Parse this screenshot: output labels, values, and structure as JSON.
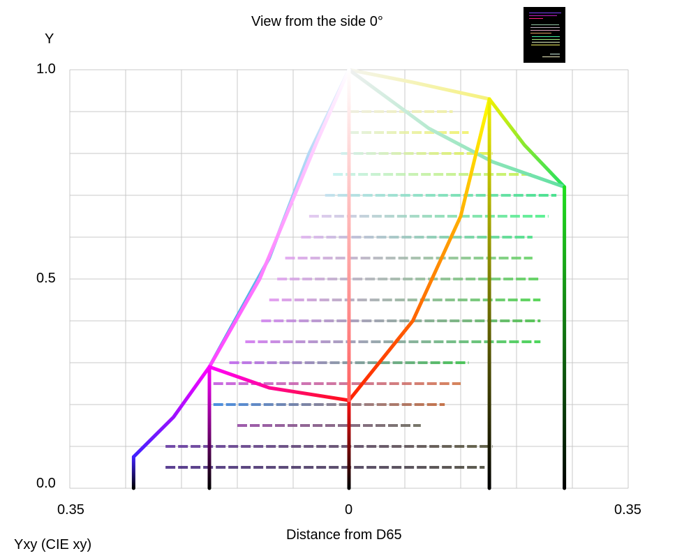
{
  "chart_data": {
    "type": "line",
    "title": "View from the side 0°",
    "xlabel": "Distance from D65",
    "ylabel": "Y",
    "caption": "Yxy (CIE xy)",
    "xlim": [
      -0.35,
      0.35
    ],
    "ylim": [
      0,
      1
    ],
    "x_tick_labels": [
      "0.35",
      "0",
      "0.35"
    ],
    "x_ticks": [
      -0.35,
      0,
      0.35
    ],
    "y_tick_labels": [
      "0.0",
      "0.5",
      "1.0"
    ],
    "y_ticks": [
      0,
      0.5,
      1
    ],
    "grid": true,
    "grid_x_step": 0.07,
    "grid_y_step": 0.1,
    "edges": [
      {
        "name": "white-yellow",
        "colors": [
          "#f4f4f0",
          "#f6f27a"
        ],
        "points": [
          [
            0,
            1
          ],
          [
            0.08,
            0.97
          ],
          [
            0.176,
            0.93
          ]
        ]
      },
      {
        "name": "yellow-green",
        "colors": [
          "#f0f000",
          "#20e060"
        ],
        "points": [
          [
            0.176,
            0.93
          ],
          [
            0.22,
            0.82
          ],
          [
            0.27,
            0.72
          ]
        ]
      },
      {
        "name": "white-green",
        "colors": [
          "#f0f0f0",
          "#60e0a0"
        ],
        "points": [
          [
            0,
            1
          ],
          [
            0.1,
            0.86
          ],
          [
            0.18,
            0.78
          ],
          [
            0.27,
            0.72
          ]
        ]
      },
      {
        "name": "white-cyan",
        "colors": [
          "#f0f0ff",
          "#20a0e0"
        ],
        "points": [
          [
            0,
            1
          ],
          [
            -0.05,
            0.8
          ],
          [
            -0.1,
            0.55
          ],
          [
            -0.175,
            0.29
          ]
        ]
      },
      {
        "name": "white-magenta",
        "colors": [
          "#ffffff",
          "#ff40ff"
        ],
        "points": [
          [
            0,
            1
          ],
          [
            -0.039,
            0.833
          ],
          [
            -0.112,
            0.5
          ],
          [
            -0.175,
            0.29
          ]
        ]
      },
      {
        "name": "magenta-blue",
        "colors": [
          "#ff00ff",
          "#4020ff"
        ],
        "points": [
          [
            -0.175,
            0.29
          ],
          [
            -0.22,
            0.17
          ],
          [
            -0.27,
            0.075
          ]
        ]
      },
      {
        "name": "magenta-red",
        "colors": [
          "#ff00ff",
          "#ff1010"
        ],
        "points": [
          [
            -0.175,
            0.29
          ],
          [
            -0.1,
            0.24
          ],
          [
            0,
            0.21
          ]
        ]
      },
      {
        "name": "red-yellow",
        "colors": [
          "#ff2000",
          "#ffff00"
        ],
        "points": [
          [
            0,
            0.21
          ],
          [
            0.08,
            0.4
          ],
          [
            0.14,
            0.65
          ],
          [
            0.176,
            0.93
          ]
        ]
      },
      {
        "name": "blue-vertical",
        "colors": [
          "#000000",
          "#4020ff"
        ],
        "points": [
          [
            -0.27,
            0
          ],
          [
            -0.27,
            0.075
          ]
        ]
      },
      {
        "name": "magenta-vertical",
        "colors": [
          "#000000",
          "#ff00ff"
        ],
        "points": [
          [
            -0.175,
            0
          ],
          [
            -0.175,
            0.29
          ]
        ]
      },
      {
        "name": "red-vertical",
        "colors": [
          "#000000",
          "#ff1010"
        ],
        "points": [
          [
            0,
            0
          ],
          [
            0,
            0.21
          ]
        ]
      },
      {
        "name": "gray-vertical",
        "colors": [
          "#ff6060",
          "#ffffff"
        ],
        "points": [
          [
            0,
            0.21
          ],
          [
            0,
            1
          ]
        ]
      },
      {
        "name": "yellow-vertical",
        "colors": [
          "#000000",
          "#f0f000"
        ],
        "points": [
          [
            0.176,
            0
          ],
          [
            0.176,
            0.93
          ]
        ]
      },
      {
        "name": "green-vertical",
        "colors": [
          "#000000",
          "#20e020"
        ],
        "points": [
          [
            0.27,
            0
          ],
          [
            0.27,
            0.72
          ]
        ]
      }
    ],
    "rows": [
      {
        "y": 0.05,
        "x": [
          -0.23,
          0.17
        ],
        "colors": [
          "#402080",
          "#404030"
        ]
      },
      {
        "y": 0.1,
        "x": [
          -0.23,
          0.18
        ],
        "colors": [
          "#6030a0",
          "#505030"
        ]
      },
      {
        "y": 0.15,
        "x": [
          -0.14,
          0.09
        ],
        "colors": [
          "#9040a0",
          "#606050"
        ]
      },
      {
        "y": 0.2,
        "x": [
          -0.17,
          0.12
        ],
        "colors": [
          "#3080e0",
          "#c06030"
        ]
      },
      {
        "y": 0.25,
        "x": [
          -0.17,
          0.14
        ],
        "colors": [
          "#c050e0",
          "#d07040"
        ]
      },
      {
        "y": 0.3,
        "x": [
          -0.15,
          0.15
        ],
        "colors": [
          "#c060f0",
          "#30c040"
        ]
      },
      {
        "y": 0.35,
        "x": [
          -0.13,
          0.24
        ],
        "colors": [
          "#d070f0",
          "#30d040"
        ]
      },
      {
        "y": 0.4,
        "x": [
          -0.11,
          0.24
        ],
        "colors": [
          "#d080f0",
          "#40c040"
        ]
      },
      {
        "y": 0.45,
        "x": [
          -0.1,
          0.24
        ],
        "colors": [
          "#e090f0",
          "#40d040"
        ]
      },
      {
        "y": 0.5,
        "x": [
          -0.09,
          0.24
        ],
        "colors": [
          "#e0a0f0",
          "#50d050"
        ]
      },
      {
        "y": 0.55,
        "x": [
          -0.08,
          0.23
        ],
        "colors": [
          "#e0a0f0",
          "#60d060"
        ]
      },
      {
        "y": 0.6,
        "x": [
          -0.06,
          0.23
        ],
        "colors": [
          "#e0b0f0",
          "#40e080"
        ]
      },
      {
        "y": 0.65,
        "x": [
          -0.05,
          0.25
        ],
        "colors": [
          "#e0c0f0",
          "#40f080"
        ]
      },
      {
        "y": 0.7,
        "x": [
          -0.03,
          0.26
        ],
        "colors": [
          "#c0e0f0",
          "#30e080"
        ]
      },
      {
        "y": 0.75,
        "x": [
          -0.02,
          0.23
        ],
        "colors": [
          "#c0f0f0",
          "#c0f040"
        ]
      },
      {
        "y": 0.8,
        "x": [
          -0.01,
          0.18
        ],
        "colors": [
          "#d0f0f0",
          "#e0f040"
        ]
      },
      {
        "y": 0.85,
        "x": [
          0.0,
          0.15
        ],
        "colors": [
          "#e0f0e0",
          "#f0f060"
        ]
      },
      {
        "y": 0.9,
        "x": [
          0.0,
          0.13
        ],
        "colors": [
          "#f0f0e0",
          "#f0f0a0"
        ]
      }
    ]
  }
}
